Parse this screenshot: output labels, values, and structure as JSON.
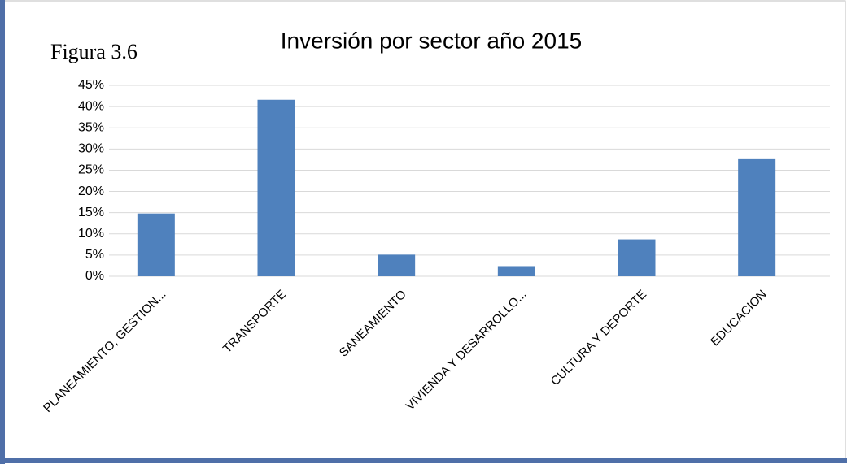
{
  "chart_data": {
    "type": "bar",
    "title": "Inversión por sector año 2015",
    "annotation": "Figura 3.6",
    "categories": [
      "PLANEAMIENTO, GESTION...",
      "TRANSPORTE",
      "SANEAMIENTO",
      "VIVIENDA Y DESARROLLO...",
      "CULTURA Y DEPORTE",
      "EDUCACION"
    ],
    "values": [
      14.8,
      41.6,
      5.1,
      2.4,
      8.7,
      27.6
    ],
    "color": "#4f81bd",
    "ylim": [
      0,
      45
    ],
    "yticks": [
      {
        "value": 0,
        "label": "0%"
      },
      {
        "value": 5,
        "label": "5%"
      },
      {
        "value": 10,
        "label": "10%"
      },
      {
        "value": 15,
        "label": "15%"
      },
      {
        "value": 20,
        "label": "20%"
      },
      {
        "value": 25,
        "label": "25%"
      },
      {
        "value": 30,
        "label": "30%"
      },
      {
        "value": 35,
        "label": "35%"
      },
      {
        "value": 40,
        "label": "40%"
      },
      {
        "value": 45,
        "label": "45%"
      }
    ],
    "grid": true
  }
}
